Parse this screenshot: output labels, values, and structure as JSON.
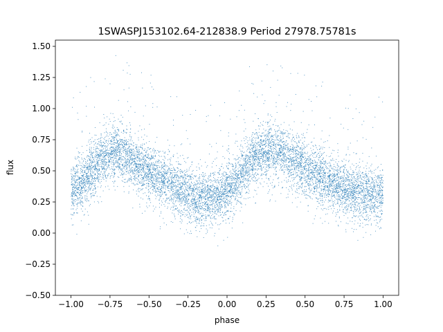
{
  "chart_data": {
    "type": "scatter",
    "title": "1SWASPJ153102.64-212838.9 Period 27978.75781s",
    "xlabel": "phase",
    "ylabel": "flux",
    "xlim": [
      -1.1,
      1.1
    ],
    "ylim": [
      -0.5,
      1.55
    ],
    "xticks": [
      -1.0,
      -0.75,
      -0.5,
      -0.25,
      0.0,
      0.25,
      0.5,
      0.75,
      1.0
    ],
    "xtick_labels": [
      "−1.00",
      "−0.75",
      "−0.50",
      "−0.25",
      "0.00",
      "0.25",
      "0.50",
      "0.75",
      "1.00"
    ],
    "yticks": [
      -0.5,
      -0.25,
      0.0,
      0.25,
      0.5,
      0.75,
      1.0,
      1.25,
      1.5
    ],
    "ytick_labels": [
      "−0.50",
      "−0.25",
      "0.00",
      "0.25",
      "0.50",
      "0.75",
      "1.00",
      "1.25",
      "1.50"
    ],
    "grid": false,
    "marker_color": "#1f77b4",
    "series": [
      {
        "phase": [
          -1.0,
          -0.95,
          -0.9,
          -0.85,
          -0.8,
          -0.75,
          -0.7,
          -0.65,
          -0.6,
          -0.55,
          -0.5,
          -0.45,
          -0.4,
          -0.35,
          -0.3,
          -0.25,
          -0.2,
          -0.15,
          -0.1,
          -0.05,
          0.0,
          0.05,
          0.1,
          0.15,
          0.2,
          0.25,
          0.3,
          0.35,
          0.4,
          0.45,
          0.5,
          0.55,
          0.6,
          0.65,
          0.7,
          0.75,
          0.8,
          0.85,
          0.9,
          0.95,
          1.0
        ],
        "median_flux": [
          0.33,
          0.38,
          0.45,
          0.53,
          0.6,
          0.64,
          0.65,
          0.62,
          0.58,
          0.54,
          0.5,
          0.46,
          0.42,
          0.38,
          0.34,
          0.31,
          0.29,
          0.28,
          0.29,
          0.31,
          0.34,
          0.4,
          0.48,
          0.57,
          0.63,
          0.66,
          0.66,
          0.64,
          0.6,
          0.56,
          0.52,
          0.48,
          0.45,
          0.42,
          0.39,
          0.36,
          0.34,
          0.32,
          0.31,
          0.31,
          0.32
        ],
        "scatter_sigma": 0.11,
        "outlier_range": [
          -0.45,
          1.5
        ]
      }
    ]
  }
}
